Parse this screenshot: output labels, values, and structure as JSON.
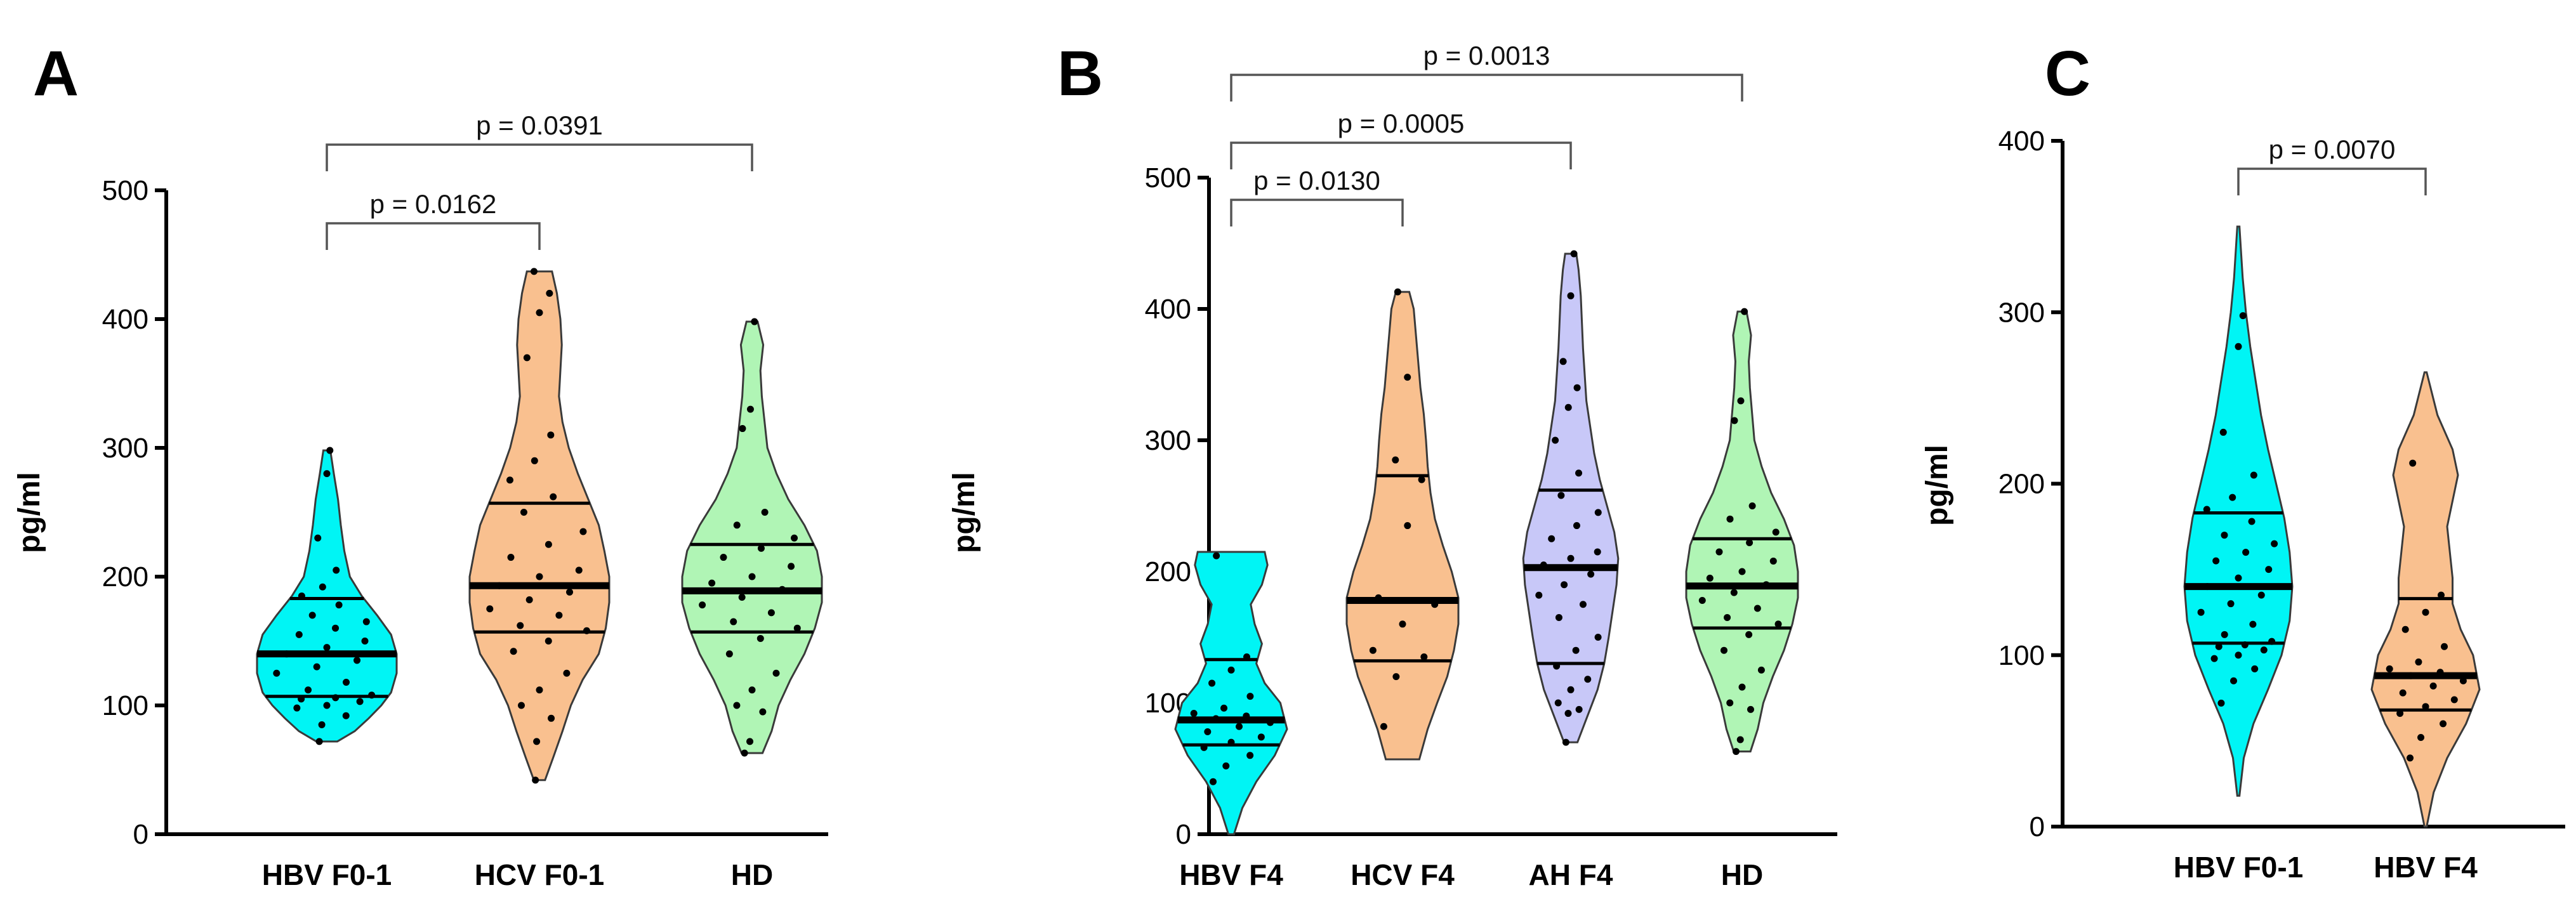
{
  "figure": {
    "y_axis_label": "pg/ml"
  },
  "chart_data": [
    {
      "panel": "A",
      "type": "violin",
      "ylabel": "pg/ml",
      "ylim": [
        0,
        500
      ],
      "yticks": [
        0,
        100,
        200,
        300,
        400,
        500
      ],
      "categories": [
        "HBV F0-1",
        "HCV F0-1",
        "HD"
      ],
      "series": [
        {
          "name": "HBV F0-1",
          "color": "#00F5F5",
          "min": 72,
          "max": 298,
          "q1": 107,
          "median": 140,
          "q3": 183,
          "shape": [
            [
              72,
              0.15
            ],
            [
              80,
              0.4
            ],
            [
              90,
              0.6
            ],
            [
              100,
              0.78
            ],
            [
              110,
              0.92
            ],
            [
              125,
              1.0
            ],
            [
              140,
              1.0
            ],
            [
              155,
              0.92
            ],
            [
              170,
              0.72
            ],
            [
              185,
              0.5
            ],
            [
              200,
              0.33
            ],
            [
              220,
              0.25
            ],
            [
              240,
              0.2
            ],
            [
              260,
              0.16
            ],
            [
              280,
              0.1
            ],
            [
              298,
              0.05
            ]
          ],
          "points": [
            72,
            85,
            92,
            98,
            100,
            103,
            105,
            106,
            108,
            112,
            118,
            125,
            130,
            135,
            140,
            145,
            150,
            155,
            160,
            165,
            170,
            178,
            185,
            192,
            205,
            230,
            280,
            298
          ]
        },
        {
          "name": "HCV F0-1",
          "color": "#F9C08F",
          "min": 42,
          "max": 437,
          "q1": 157,
          "median": 193,
          "q3": 257,
          "shape": [
            [
              42,
              0.08
            ],
            [
              60,
              0.2
            ],
            [
              80,
              0.33
            ],
            [
              100,
              0.45
            ],
            [
              120,
              0.62
            ],
            [
              140,
              0.85
            ],
            [
              160,
              0.95
            ],
            [
              180,
              1.0
            ],
            [
              200,
              1.0
            ],
            [
              220,
              0.93
            ],
            [
              240,
              0.85
            ],
            [
              260,
              0.7
            ],
            [
              280,
              0.55
            ],
            [
              300,
              0.42
            ],
            [
              320,
              0.33
            ],
            [
              340,
              0.28
            ],
            [
              360,
              0.3
            ],
            [
              380,
              0.32
            ],
            [
              400,
              0.3
            ],
            [
              420,
              0.25
            ],
            [
              437,
              0.18
            ]
          ],
          "points": [
            42,
            72,
            90,
            100,
            112,
            125,
            142,
            150,
            158,
            162,
            170,
            175,
            182,
            188,
            193,
            200,
            205,
            215,
            225,
            235,
            250,
            262,
            275,
            290,
            310,
            370,
            405,
            420,
            437
          ]
        },
        {
          "name": "HD",
          "color": "#B0F5B5",
          "min": 63,
          "max": 398,
          "q1": 157,
          "median": 189,
          "q3": 225,
          "shape": [
            [
              63,
              0.15
            ],
            [
              80,
              0.28
            ],
            [
              100,
              0.38
            ],
            [
              120,
              0.55
            ],
            [
              140,
              0.75
            ],
            [
              160,
              0.9
            ],
            [
              180,
              1.0
            ],
            [
              200,
              1.0
            ],
            [
              220,
              0.93
            ],
            [
              240,
              0.75
            ],
            [
              260,
              0.52
            ],
            [
              280,
              0.35
            ],
            [
              300,
              0.22
            ],
            [
              320,
              0.18
            ],
            [
              340,
              0.14
            ],
            [
              360,
              0.12
            ],
            [
              380,
              0.16
            ],
            [
              398,
              0.08
            ]
          ],
          "points": [
            63,
            72,
            95,
            100,
            112,
            125,
            140,
            152,
            160,
            165,
            172,
            178,
            184,
            190,
            195,
            200,
            208,
            215,
            222,
            230,
            240,
            250,
            315,
            330,
            398
          ]
        }
      ],
      "comparisons": [
        {
          "from": "HBV F0-1",
          "to": "HCV F0-1",
          "label": "p = 0.0162"
        },
        {
          "from": "HBV F0-1",
          "to": "HD",
          "label": "p = 0.0391"
        }
      ]
    },
    {
      "panel": "B",
      "type": "violin",
      "ylabel": "pg/ml",
      "ylim": [
        0,
        500
      ],
      "yticks": [
        0,
        100,
        200,
        300,
        400,
        500
      ],
      "categories": [
        "HBV F4",
        "HCV F4",
        "AH F4",
        "HD"
      ],
      "series": [
        {
          "name": "HBV F4",
          "color": "#00F5F5",
          "min": 0,
          "max": 215,
          "q1": 68,
          "median": 87,
          "q3": 133,
          "shape": [
            [
              0,
              0.05
            ],
            [
              20,
              0.2
            ],
            [
              40,
              0.45
            ],
            [
              60,
              0.78
            ],
            [
              80,
              1.0
            ],
            [
              100,
              0.88
            ],
            [
              115,
              0.6
            ],
            [
              130,
              0.45
            ],
            [
              145,
              0.55
            ],
            [
              160,
              0.42
            ],
            [
              175,
              0.35
            ],
            [
              190,
              0.55
            ],
            [
              205,
              0.65
            ],
            [
              215,
              0.6
            ]
          ],
          "points": [
            40,
            52,
            60,
            66,
            70,
            74,
            78,
            82,
            85,
            88,
            90,
            92,
            96,
            105,
            115,
            125,
            135,
            212
          ]
        },
        {
          "name": "HCV F4",
          "color": "#F9C08F",
          "min": 57,
          "max": 413,
          "q1": 132,
          "median": 178,
          "q3": 273,
          "shape": [
            [
              57,
              0.3
            ],
            [
              80,
              0.45
            ],
            [
              100,
              0.62
            ],
            [
              120,
              0.8
            ],
            [
              140,
              0.92
            ],
            [
              160,
              1.0
            ],
            [
              180,
              1.0
            ],
            [
              200,
              0.88
            ],
            [
              220,
              0.72
            ],
            [
              240,
              0.58
            ],
            [
              260,
              0.5
            ],
            [
              280,
              0.45
            ],
            [
              300,
              0.42
            ],
            [
              320,
              0.38
            ],
            [
              340,
              0.32
            ],
            [
              360,
              0.28
            ],
            [
              380,
              0.24
            ],
            [
              400,
              0.2
            ],
            [
              413,
              0.12
            ]
          ],
          "points": [
            82,
            120,
            135,
            140,
            160,
            175,
            180,
            235,
            270,
            285,
            348,
            413
          ]
        },
        {
          "name": "AH F4",
          "color": "#C8C8F8",
          "min": 70,
          "max": 442,
          "q1": 130,
          "median": 203,
          "q3": 262,
          "shape": [
            [
              70,
              0.12
            ],
            [
              90,
              0.3
            ],
            [
              110,
              0.48
            ],
            [
              130,
              0.6
            ],
            [
              150,
              0.68
            ],
            [
              170,
              0.75
            ],
            [
              190,
              0.82
            ],
            [
              210,
              0.85
            ],
            [
              230,
              0.78
            ],
            [
              250,
              0.65
            ],
            [
              270,
              0.52
            ],
            [
              290,
              0.42
            ],
            [
              310,
              0.35
            ],
            [
              330,
              0.28
            ],
            [
              350,
              0.25
            ],
            [
              370,
              0.22
            ],
            [
              390,
              0.2
            ],
            [
              410,
              0.18
            ],
            [
              430,
              0.14
            ],
            [
              442,
              0.1
            ]
          ],
          "points": [
            70,
            92,
            95,
            100,
            110,
            118,
            128,
            140,
            150,
            165,
            175,
            182,
            190,
            198,
            205,
            210,
            215,
            225,
            235,
            245,
            258,
            275,
            300,
            325,
            340,
            360,
            410,
            442
          ]
        },
        {
          "name": "HD",
          "color": "#B0F5B5",
          "min": 63,
          "max": 398,
          "q1": 157,
          "median": 189,
          "q3": 225,
          "shape": [
            [
              63,
              0.15
            ],
            [
              80,
              0.28
            ],
            [
              100,
              0.38
            ],
            [
              120,
              0.55
            ],
            [
              140,
              0.75
            ],
            [
              160,
              0.9
            ],
            [
              180,
              1.0
            ],
            [
              200,
              1.0
            ],
            [
              220,
              0.93
            ],
            [
              240,
              0.75
            ],
            [
              260,
              0.52
            ],
            [
              280,
              0.35
            ],
            [
              300,
              0.22
            ],
            [
              320,
              0.18
            ],
            [
              340,
              0.14
            ],
            [
              360,
              0.12
            ],
            [
              380,
              0.16
            ],
            [
              398,
              0.08
            ]
          ],
          "points": [
            63,
            72,
            95,
            100,
            112,
            125,
            140,
            152,
            160,
            165,
            172,
            178,
            184,
            190,
            195,
            200,
            208,
            215,
            222,
            230,
            240,
            250,
            315,
            330,
            398
          ]
        }
      ],
      "comparisons": [
        {
          "from": "HBV F4",
          "to": "HCV F4",
          "label": "p = 0.0130"
        },
        {
          "from": "HBV F4",
          "to": "AH F4",
          "label": "p = 0.0005"
        },
        {
          "from": "HBV F4",
          "to": "HD",
          "label": "p = 0.0013"
        }
      ]
    },
    {
      "panel": "C",
      "type": "violin",
      "ylabel": "pg/ml",
      "ylim": [
        0,
        400
      ],
      "yticks": [
        0,
        100,
        200,
        300,
        400
      ],
      "categories": [
        "HBV F0-1",
        "HBV F4"
      ],
      "series": [
        {
          "name": "HBV F0-1",
          "color": "#00F5F5",
          "min": 18,
          "max": 350,
          "q1": 107,
          "median": 140,
          "q3": 183,
          "shape": [
            [
              18,
              0.02
            ],
            [
              40,
              0.1
            ],
            [
              60,
              0.28
            ],
            [
              80,
              0.55
            ],
            [
              100,
              0.8
            ],
            [
              120,
              0.95
            ],
            [
              140,
              1.0
            ],
            [
              160,
              0.95
            ],
            [
              180,
              0.85
            ],
            [
              200,
              0.7
            ],
            [
              220,
              0.55
            ],
            [
              240,
              0.42
            ],
            [
              260,
              0.32
            ],
            [
              280,
              0.22
            ],
            [
              300,
              0.14
            ],
            [
              320,
              0.08
            ],
            [
              350,
              0.02
            ]
          ],
          "points": [
            72,
            85,
            92,
            98,
            100,
            103,
            105,
            106,
            108,
            112,
            118,
            125,
            130,
            135,
            140,
            145,
            150,
            155,
            160,
            165,
            170,
            178,
            185,
            192,
            205,
            230,
            280,
            298
          ]
        },
        {
          "name": "HBV F4",
          "color": "#F9C08F",
          "min": 0,
          "max": 265,
          "q1": 68,
          "median": 88,
          "q3": 133,
          "shape": [
            [
              0,
              0.02
            ],
            [
              20,
              0.15
            ],
            [
              40,
              0.4
            ],
            [
              60,
              0.75
            ],
            [
              80,
              1.0
            ],
            [
              100,
              0.88
            ],
            [
              115,
              0.65
            ],
            [
              130,
              0.5
            ],
            [
              145,
              0.5
            ],
            [
              160,
              0.45
            ],
            [
              175,
              0.4
            ],
            [
              190,
              0.5
            ],
            [
              205,
              0.6
            ],
            [
              220,
              0.5
            ],
            [
              240,
              0.22
            ],
            [
              265,
              0.02
            ]
          ],
          "points": [
            40,
            52,
            60,
            66,
            70,
            74,
            78,
            82,
            85,
            88,
            90,
            92,
            96,
            105,
            115,
            125,
            135,
            212
          ]
        }
      ],
      "comparisons": [
        {
          "from": "HBV F0-1",
          "to": "HBV F4",
          "label": "p = 0.0070"
        }
      ]
    }
  ]
}
